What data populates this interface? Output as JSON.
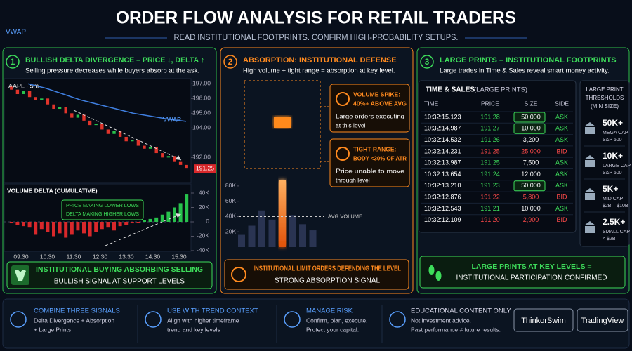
{
  "header": {
    "title": "ORDER FLOW ANALYSIS FOR RETAIL TRADERS",
    "subtitle": "READ INSTITUTIONAL FOOTPRINTS. CONFIRM HIGH-PROBABILITY SETUPS.",
    "corner_label": "VWAP"
  },
  "panels": [
    {
      "number": "1",
      "title": "BULLISH DELTA DIVERGENCE – PRICE ↓, DELTA ↑",
      "subtitle": "Selling pressure decreases while buyers absorb at the ask.",
      "price_chart": {
        "symbol": "AAPL · 5m",
        "open": [
          196.8,
          196.6,
          196.3,
          196.5,
          196.1,
          195.9,
          196.0,
          195.6,
          195.3,
          195.4,
          195.0,
          194.7,
          194.9,
          194.5,
          194.2,
          194.3,
          193.9,
          193.6,
          193.8,
          193.4,
          193.1,
          193.2,
          192.8,
          192.6,
          192.7,
          192.3,
          192.0,
          192.1,
          191.7,
          191.5
        ],
        "close": [
          196.6,
          196.3,
          196.5,
          196.1,
          195.9,
          196.0,
          195.6,
          195.3,
          195.4,
          195.0,
          194.7,
          194.9,
          194.5,
          194.2,
          194.3,
          193.9,
          193.6,
          193.8,
          193.4,
          193.1,
          193.2,
          192.8,
          192.6,
          192.7,
          192.3,
          192.0,
          192.1,
          191.7,
          191.5,
          191.25
        ],
        "vwap": [
          197.0,
          196.7,
          196.3,
          195.9,
          195.6,
          195.3,
          195.0,
          194.8,
          194.6,
          194.45
        ],
        "vwap_label": "VWAP",
        "last_price": 191.25,
        "up_color": "#27c24c",
        "down_color": "#e0342b",
        "vwap_color": "#3f7fe0",
        "ylim": [
          190.4,
          197.3
        ],
        "yticks": [
          {
            "value": 197,
            "label": "197.00"
          },
          {
            "value": 196,
            "label": "196.00"
          },
          {
            "value": 195,
            "label": "195.00"
          },
          {
            "value": 194,
            "label": "194.00"
          },
          {
            "value": 192,
            "label": "192.00"
          }
        ]
      },
      "delta_chart": {
        "title": "VOLUME DELTA (CUMULATIVE)",
        "values": [
          -2000,
          -4000,
          -6000,
          -8000,
          -18000,
          -10000,
          -14000,
          -20000,
          -16000,
          -22000,
          -18000,
          -12000,
          -16000,
          -20000,
          -14000,
          -10000,
          -8000,
          -12000,
          -6000,
          -4000,
          -2000,
          -1000,
          2000,
          4000,
          6000,
          10000,
          14000,
          20000,
          26000,
          38000
        ],
        "ylim": [
          -41000,
          52700
        ],
        "yticks": [
          {
            "value": 40000,
            "label": "40K"
          },
          {
            "value": 20000,
            "label": "20K"
          },
          0,
          {
            "value": -20000,
            "label": "-20K"
          },
          {
            "value": -40000,
            "label": "-40K"
          }
        ],
        "annotation": [
          "PRICE MAKING LOWER LOWS",
          "DELTA MAKING HIGHER LOWS"
        ],
        "times": [
          "09:30",
          "10:30",
          "11:30",
          "12:30",
          "13:30",
          "14:30",
          "15:30"
        ]
      },
      "callout": {
        "title": "INSTITUTIONAL BUYING ABSORBING SELLING",
        "text": "BULLISH SIGNAL AT SUPPORT LEVELS"
      }
    },
    {
      "number": "2",
      "title": "ABSORPTION: INSTITUTIONAL DEFENSE",
      "subtitle": "High volume + tight range = absorption at key level.",
      "volume_spike": {
        "title": [
          "VOLUME SPIKE:",
          "40%+ ABOVE AVG"
        ],
        "text": [
          "Large orders executing",
          "at this level"
        ]
      },
      "tight_range": {
        "title": [
          "TIGHT RANGE:",
          "BODY <30% OF ATR"
        ],
        "text": [
          "Price unable to move",
          "through level"
        ]
      },
      "volume_chart": {
        "values": [
          16000,
          28000,
          48000,
          36000,
          88000,
          42000,
          30000,
          22000
        ],
        "ylim": [
          0,
          90000
        ],
        "yticks": [
          {
            "value": 80000,
            "label": "80K"
          },
          {
            "value": 60000,
            "label": "60K"
          },
          {
            "value": 40000,
            "label": "40K"
          },
          {
            "value": 20000,
            "label": "20K"
          }
        ],
        "avg": 40000,
        "avg_label": "AVG VOLUME",
        "color": "#2a3452",
        "spike_color": "#ff7a1a"
      },
      "callout": {
        "title": "INSTITUTIONAL LIMIT ORDERS DEFENDING THE LEVEL",
        "text": "STRONG ABSORPTION SIGNAL"
      }
    },
    {
      "number": "3",
      "title": "LARGE PRINTS – INSTITUTIONAL FOOTPRINTS",
      "subtitle": "Large trades in Time & Sales reveal smart money activity.",
      "table": {
        "title": "TIME & SALES",
        "title_note": "(LARGE PRINTS)",
        "columns": [
          "TIME",
          "PRICE",
          "SIZE",
          "SIDE"
        ],
        "rows": [
          [
            "10:32:15.123",
            "191.28",
            "50,000",
            "ASK"
          ],
          [
            "10:32:14.987",
            "191.27",
            "10,000",
            "ASK"
          ],
          [
            "10:32:14.532",
            "191.26",
            "3,200",
            "ASK"
          ],
          [
            "10:32:14.231",
            "191.25",
            "25,000",
            "BID"
          ],
          [
            "10:32:13.987",
            "191.25",
            "7,500",
            "ASK"
          ],
          [
            "10:32:13.654",
            "191.24",
            "12,000",
            "ASK"
          ],
          [
            "10:32:13.210",
            "191.23",
            "50,000",
            "ASK"
          ],
          [
            "10:32:12.876",
            "191.22",
            "5,800",
            "BID"
          ],
          [
            "10:32:12.543",
            "191.21",
            "10,000",
            "ASK"
          ],
          [
            "10:32:12.109",
            "191.20",
            "2,900",
            "BID"
          ]
        ],
        "highlighted_rows": [
          0,
          1,
          6
        ]
      },
      "thresholds": {
        "title": [
          "LARGE PRINT",
          "THRESHOLDS",
          "(MIN SIZE)"
        ],
        "items": [
          {
            "size": "50K+",
            "label": "MEGA CAP",
            "sub": "S&P 500"
          },
          {
            "size": "10K+",
            "label": "LARGE CAP",
            "sub": "S&P 500"
          },
          {
            "size": "5K+",
            "label": "MID CAP",
            "sub": "$2B – $10B"
          },
          {
            "size": "2.5K+",
            "label": "SMALL CAP",
            "sub": "< $2B"
          }
        ]
      },
      "callout": {
        "title": "LARGE PRINTS AT KEY LEVELS =",
        "text": "INSTITUTIONAL PARTICIPATION CONFIRMED"
      }
    }
  ],
  "footer": {
    "items": [
      {
        "title": "COMBINE THREE SIGNALS",
        "lines": [
          "Delta Divergence + Absorption",
          "+ Large Prints"
        ]
      },
      {
        "title": "USE WITH TREND CONTEXT",
        "lines": [
          "Align with higher timeframe",
          "trend and key levels"
        ]
      },
      {
        "title": "MANAGE RISK",
        "lines": [
          "Confirm, plan, execute.",
          "Protect your capital."
        ]
      },
      {
        "title": "EDUCATIONAL CONTENT ONLY",
        "lines": [
          "Not investment advice.",
          "Past performance ≠ future results."
        ]
      }
    ],
    "buttons": [
      "ThinkorSwim",
      "TradingView"
    ]
  }
}
